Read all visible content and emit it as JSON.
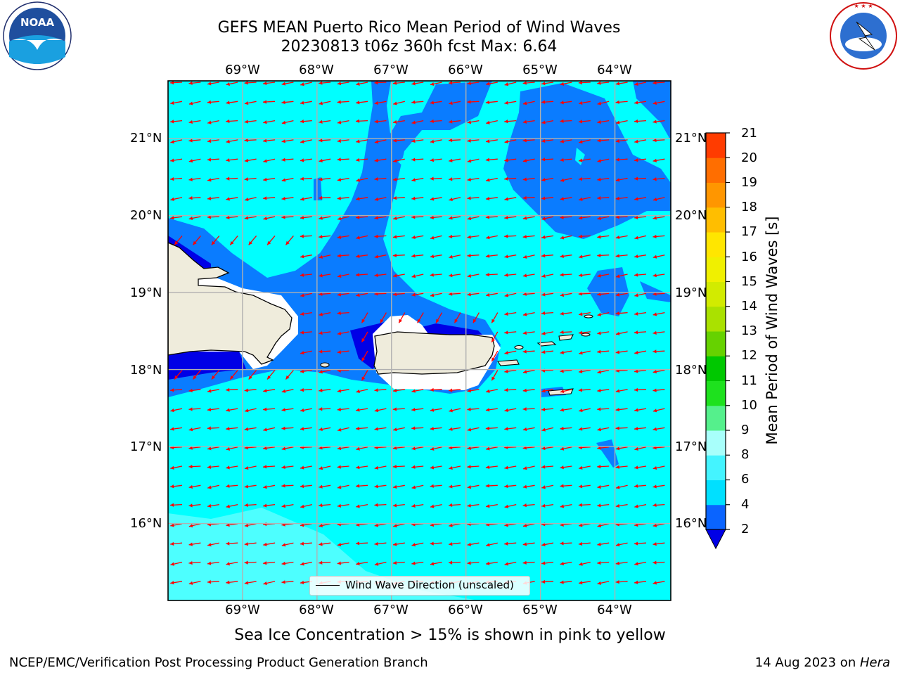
{
  "title": {
    "line1": "GEFS MEAN Puerto Rico Mean Period of Wind Waves",
    "line2": "20230813 t06z 360h fcst   Max: 6.64"
  },
  "logos": {
    "left": "NOAA",
    "right": "NATIONAL WEATHER SERVICE"
  },
  "map": {
    "lon_labels": [
      "69°W",
      "68°W",
      "67°W",
      "66°W",
      "65°W",
      "64°W"
    ],
    "lat_labels": [
      "21°N",
      "20°N",
      "19°N",
      "18°N",
      "17°N",
      "16°N"
    ],
    "lon_range": [
      -70.0,
      -63.25
    ],
    "lat_range": [
      15.0,
      21.75
    ],
    "grid": true,
    "arrow_color": "#ff0000",
    "land_color": "#efecdc"
  },
  "legend": {
    "label": "Wind Wave Direction (unscaled)",
    "placement": "lower-center"
  },
  "colorbar": {
    "title": "Mean Period of Wind Waves [s]",
    "ticks": [
      "2",
      "4",
      "6",
      "8",
      "9",
      "10",
      "11",
      "12",
      "13",
      "14",
      "15",
      "16",
      "17",
      "18",
      "19",
      "20",
      "21"
    ],
    "colors": [
      "#0a64ff",
      "#00e0ff",
      "#44f4ff",
      "#a8fffb",
      "#55f08c",
      "#1ee11e",
      "#00c800",
      "#66d200",
      "#aae100",
      "#d2eb00",
      "#f0f000",
      "#ffe600",
      "#ffbe00",
      "#ff9600",
      "#ff6e00",
      "#ff3c00",
      "#ff0000"
    ],
    "extend_color": "#0000e6"
  },
  "note": "Sea Ice Concentration > 15% is shown in pink to yellow",
  "footer": {
    "left": "NCEP/EMC/Verification Post Processing Product Generation Branch",
    "right_date": "14 Aug 2023 on ",
    "right_host": "Hera"
  }
}
